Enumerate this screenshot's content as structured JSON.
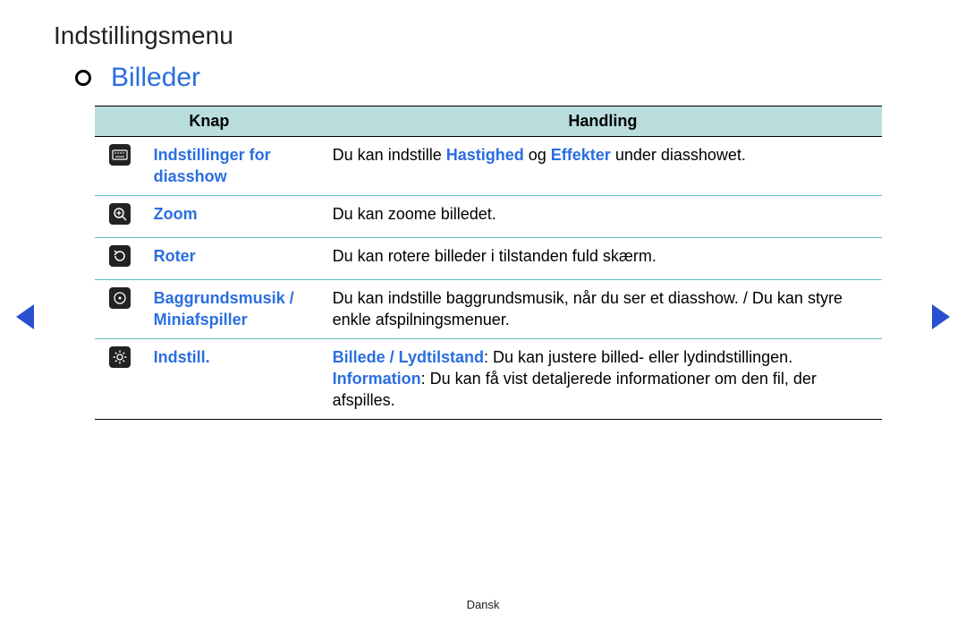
{
  "colors": {
    "link": "#2a6ee0",
    "header_bg": "#b9dedd",
    "row_divider": "#5abfb9",
    "table_border": "#000000",
    "nav_arrow": "#2a4fd0",
    "text": "#222222"
  },
  "page_title": "Indstillingsmenu",
  "section_title": "Billeder",
  "table": {
    "headers": {
      "col1": "Knap",
      "col2": "Handling"
    },
    "rows": [
      {
        "icon": "keyboard-icon",
        "label": "Indstillinger for diasshow",
        "desc_pre": "Du kan indstille ",
        "kw1": "Hastighed",
        "mid": " og ",
        "kw2": "Effekter",
        "desc_post": " under diasshowet."
      },
      {
        "icon": "zoom-icon",
        "label": "Zoom",
        "desc": "Du kan zoome billedet."
      },
      {
        "icon": "rotate-icon",
        "label": "Roter",
        "desc": "Du kan rotere billeder i tilstanden fuld skærm."
      },
      {
        "icon": "music-icon",
        "label": "Baggrundsmusik / Miniafspiller",
        "desc": "Du kan indstille baggrundsmusik, når du ser et diasshow. / Du kan styre enkle afspilningsmenuer."
      },
      {
        "icon": "gear-icon",
        "label": "Indstill.",
        "kw1": "Billede / Lydtilstand",
        "line1_post": ": Du kan justere billed- eller lydindstillingen.",
        "kw2": "Information",
        "line2_post": ": Du kan få vist detaljerede informationer om den fil, der afspilles."
      }
    ]
  },
  "footer": "Dansk"
}
